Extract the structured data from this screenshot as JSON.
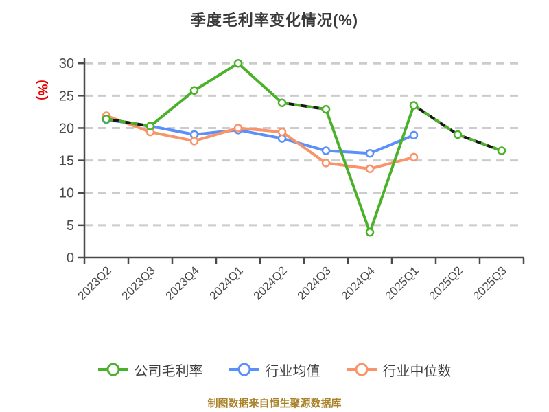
{
  "title": "季度毛利率变化情况(%)",
  "y_axis": {
    "unit_label": "(%)",
    "unit_color": "#e60000",
    "ticks": [
      0,
      5,
      10,
      15,
      20,
      25,
      30
    ]
  },
  "footer": "制图数据来自恒生聚源数据库",
  "colors": {
    "grid": "#cccccc",
    "axis": "#4a4a4a",
    "tick_label": "#4a4a4a",
    "title": "#3a3a3a",
    "legend_text": "#3f3f3f",
    "footer_text": "#a9822a",
    "dash_underlay": "#161616",
    "marker_fill": "#ffffff"
  },
  "chart_data": {
    "type": "line",
    "title": "季度毛利率变化情况(%)",
    "categories": [
      "2023Q2",
      "2023Q3",
      "2023Q4",
      "2024Q1",
      "2024Q2",
      "2024Q3",
      "2024Q4",
      "2025Q1",
      "2025Q2",
      "2025Q3"
    ],
    "series": [
      {
        "name": "行业均值",
        "color": "#5b8ff9",
        "values": [
          21.3,
          20.3,
          19.0,
          19.7,
          18.4,
          16.5,
          16.1,
          18.9,
          null,
          null
        ],
        "dashed_segments": []
      },
      {
        "name": "行业中位数",
        "color": "#f8936a",
        "values": [
          21.9,
          19.4,
          18.0,
          20.0,
          19.4,
          14.6,
          13.7,
          15.5,
          null,
          null
        ],
        "dashed_segments": []
      },
      {
        "name": "公司毛利率",
        "color": "#4bb02a",
        "values": [
          21.4,
          20.3,
          25.8,
          30.0,
          23.9,
          22.9,
          3.9,
          23.5,
          19.0,
          16.5
        ],
        "dashed_segments": [
          0,
          4,
          7,
          8
        ]
      }
    ],
    "ylim": [
      0,
      30
    ],
    "grid": true,
    "grid_style": "dashed",
    "legend_position": "bottom",
    "legend_order": [
      "公司毛利率",
      "行业均值",
      "行业中位数"
    ]
  }
}
